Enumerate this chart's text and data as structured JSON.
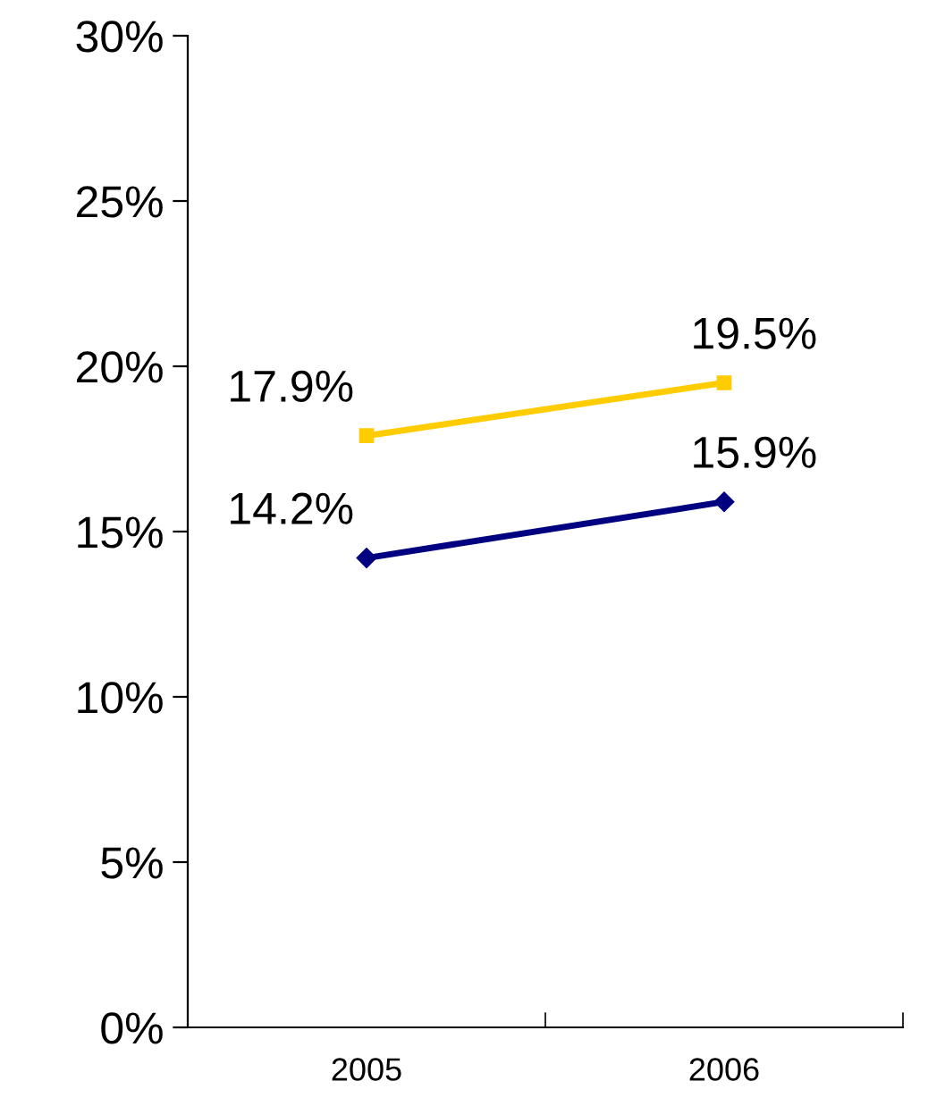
{
  "chart_data": {
    "type": "line",
    "categories": [
      "2005",
      "2006"
    ],
    "series": [
      {
        "color": "#ffcc00",
        "marker": "square",
        "values": [
          17.9,
          19.5
        ],
        "value_labels": [
          "17.9%",
          "19.5%"
        ]
      },
      {
        "color": "#000080",
        "marker": "diamond",
        "values": [
          14.2,
          15.9
        ],
        "value_labels": [
          "14.2%",
          "15.9%"
        ]
      }
    ],
    "ylim": [
      0,
      30
    ],
    "yticks": [
      {
        "value": 0,
        "label": "0%"
      },
      {
        "value": 5,
        "label": "5%"
      },
      {
        "value": 10,
        "label": "10%"
      },
      {
        "value": 15,
        "label": "15%"
      },
      {
        "value": 20,
        "label": "20%"
      },
      {
        "value": 25,
        "label": "25%"
      },
      {
        "value": 30,
        "label": "30%"
      }
    ],
    "grid": false,
    "legend": false
  }
}
